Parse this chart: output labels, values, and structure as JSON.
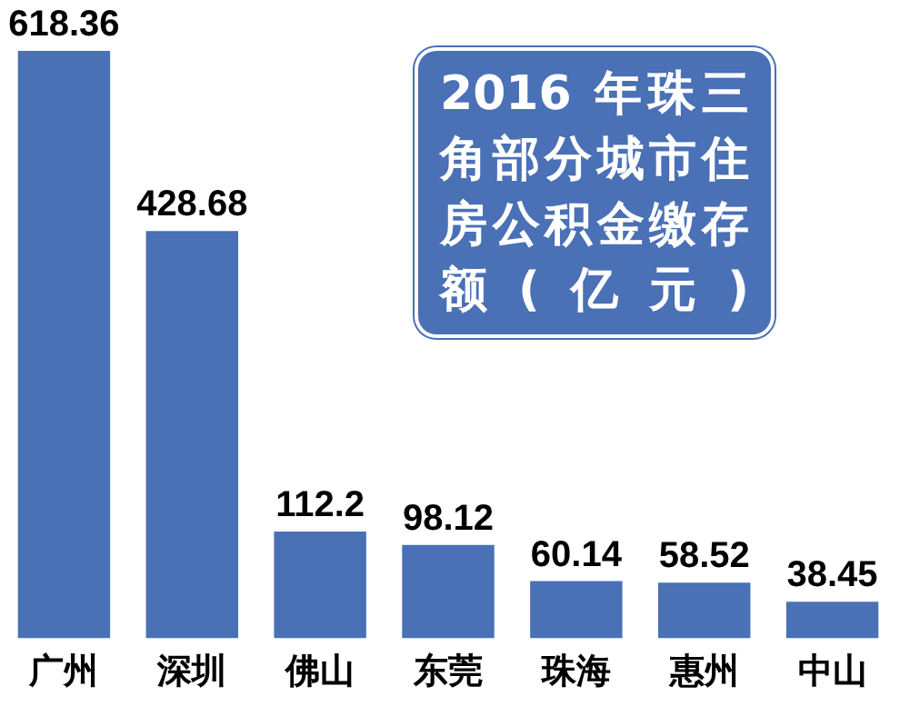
{
  "chart_data": {
    "type": "bar",
    "title": "2016 年珠三角部分城市住房公积金缴存额(亿元)",
    "categories": [
      "广州",
      "深圳",
      "佛山",
      "东莞",
      "珠海",
      "惠州",
      "中山"
    ],
    "values": [
      618.36,
      428.68,
      112.2,
      98.12,
      60.14,
      58.52,
      38.45
    ],
    "color": "#4a70b6",
    "data_labels": true,
    "grid": false,
    "legend": false
  }
}
